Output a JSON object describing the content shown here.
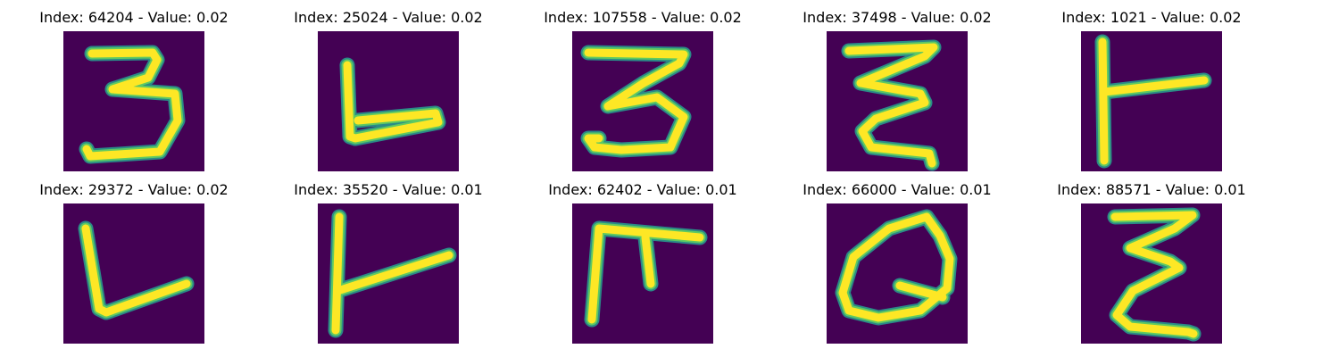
{
  "colors": {
    "background": "#440154",
    "stroke_outer": "#2a8a87",
    "stroke_mid": "#5ec962",
    "stroke_core": "#fde725",
    "page": "#ffffff",
    "text": "#000000"
  },
  "panels": [
    {
      "title": "Index: 64204 - Value: 0.02",
      "glyph": "digit-3"
    },
    {
      "title": "Index: 25024 - Value: 0.02",
      "glyph": "letter-L"
    },
    {
      "title": "Index: 107558 - Value: 0.02",
      "glyph": "digit-3-curly"
    },
    {
      "title": "Index: 37498 - Value: 0.02",
      "glyph": "zigzag-3"
    },
    {
      "title": "Index: 1021 - Value: 0.02",
      "glyph": "letter-T-sideways"
    },
    {
      "title": "Index: 29372 - Value: 0.02",
      "glyph": "letter-L-slanted"
    },
    {
      "title": "Index: 35520 - Value: 0.01",
      "glyph": "letter-T-sideways-thin"
    },
    {
      "title": "Index: 62402 - Value: 0.01",
      "glyph": "letter-F"
    },
    {
      "title": "Index: 66000 - Value: 0.01",
      "glyph": "letter-Q"
    },
    {
      "title": "Index: 88571 - Value: 0.01",
      "glyph": "epsilon"
    }
  ]
}
